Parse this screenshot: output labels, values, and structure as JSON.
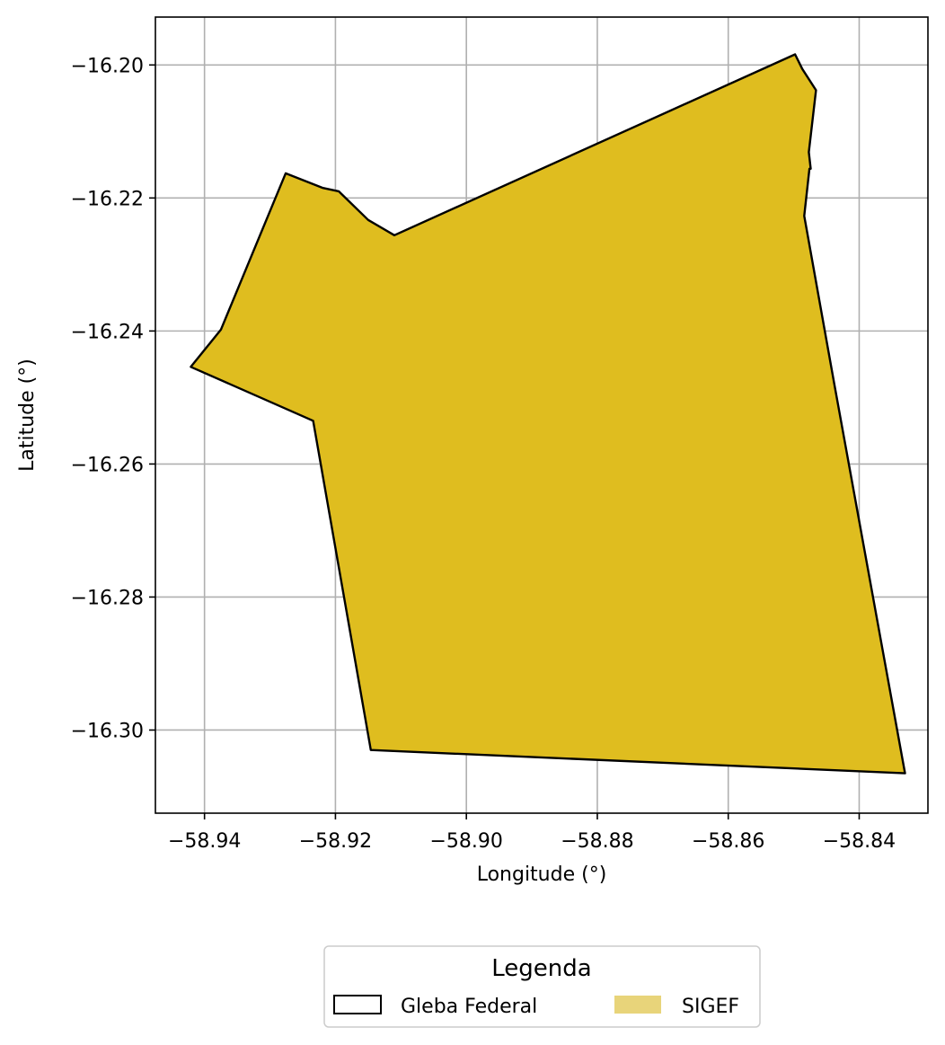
{
  "chart_data": {
    "type": "map",
    "xlabel": "Longitude (°)",
    "ylabel": "Latitude (°)",
    "xlim": [
      -58.9475,
      -58.8295
    ],
    "ylim": [
      -16.3125,
      -16.1928
    ],
    "grid": true,
    "xticks": [
      -58.94,
      -58.92,
      -58.9,
      -58.88,
      -58.86,
      -58.84
    ],
    "xtick_labels": [
      "−58.94",
      "−58.92",
      "−58.90",
      "−58.88",
      "−58.86",
      "−58.84"
    ],
    "yticks": [
      -16.2,
      -16.22,
      -16.24,
      -16.26,
      -16.28,
      -16.3
    ],
    "ytick_labels": [
      "−16.20",
      "−16.22",
      "−16.24",
      "−16.26",
      "−16.28",
      "−16.30"
    ],
    "polygon": {
      "fill": "#dfbd1f",
      "stroke": "#000000",
      "coordinates": [
        [
          -58.8498,
          -16.1984
        ],
        [
          -58.8487,
          -16.2006
        ],
        [
          -58.8466,
          -16.2038
        ],
        [
          -58.8477,
          -16.2131
        ],
        [
          -58.8474,
          -16.2156
        ],
        [
          -58.8476,
          -16.2156
        ],
        [
          -58.8484,
          -16.2227
        ],
        [
          -58.8438,
          -16.248
        ],
        [
          -58.833,
          -16.3065
        ],
        [
          -58.9146,
          -16.303
        ],
        [
          -58.9234,
          -16.2535
        ],
        [
          -58.9421,
          -16.2454
        ],
        [
          -58.9375,
          -16.2398
        ],
        [
          -58.9276,
          -16.2163
        ],
        [
          -58.9219,
          -16.2185
        ],
        [
          -58.9195,
          -16.219
        ],
        [
          -58.915,
          -16.2233
        ],
        [
          -58.911,
          -16.2256
        ],
        [
          -58.8498,
          -16.1984
        ]
      ]
    },
    "legend": {
      "title": "Legenda",
      "placement": "bottom-center",
      "entries": [
        {
          "label": "Gleba Federal",
          "style": "outline",
          "color": "#000000"
        },
        {
          "label": "SIGEF",
          "style": "filled",
          "color": "#e8d47a"
        }
      ]
    }
  }
}
